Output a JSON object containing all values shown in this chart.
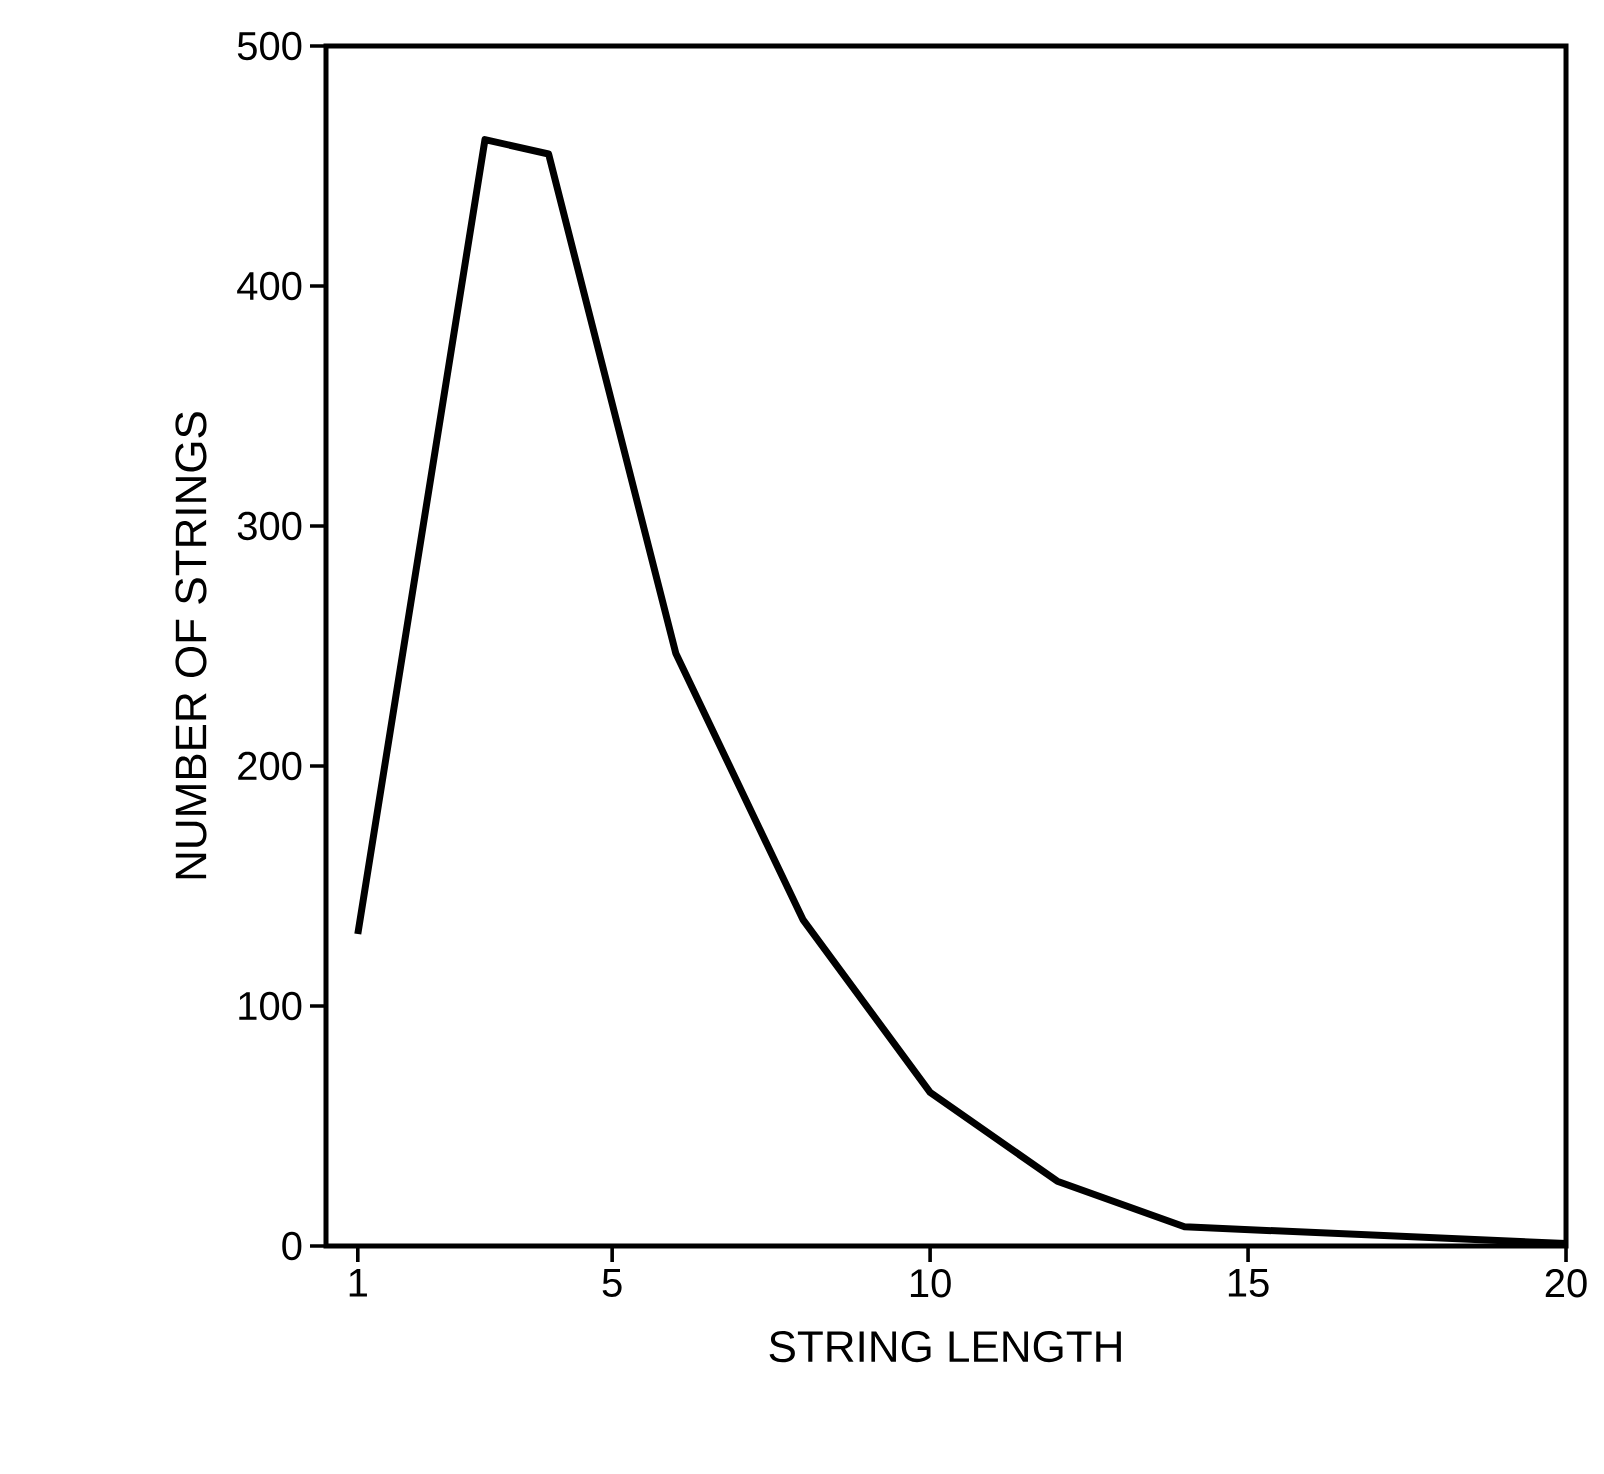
{
  "chart_data": {
    "type": "line",
    "xlabel": "STRING LENGTH",
    "ylabel": "NUMBER OF STRINGS",
    "x": [
      1,
      3,
      4,
      6,
      8,
      10,
      12,
      14,
      20
    ],
    "values": [
      130,
      461,
      455,
      247,
      136,
      64,
      27,
      8,
      1
    ],
    "color": "#000000",
    "xlim": [
      0.5,
      20
    ],
    "ylim": [
      0,
      500
    ],
    "xticks": [
      1,
      5,
      10,
      15,
      20
    ],
    "yticks": [
      0,
      100,
      200,
      300,
      400,
      500
    ]
  }
}
